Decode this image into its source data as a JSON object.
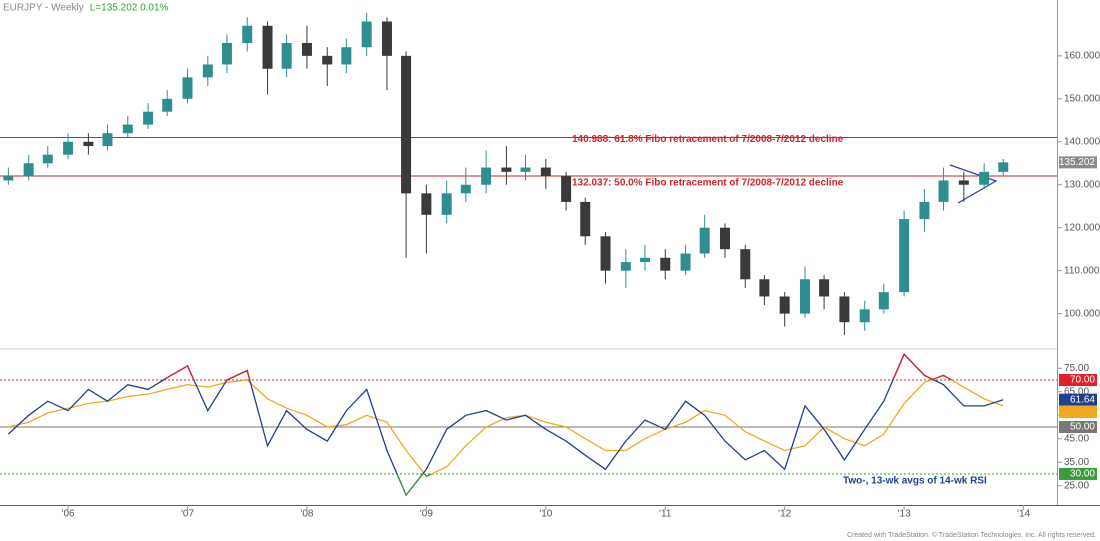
{
  "chart_data": [
    {
      "type": "candlestick",
      "title": "EURJPY - Weekly",
      "subtitle": "L=135.202 0.01%",
      "x": [
        2005.5,
        2005.67,
        2005.83,
        2006,
        2006.17,
        2006.33,
        2006.5,
        2006.67,
        2006.83,
        2007,
        2007.17,
        2007.33,
        2007.5,
        2007.67,
        2007.83,
        2008,
        2008.17,
        2008.33,
        2008.5,
        2008.67,
        2008.83,
        2009,
        2009.17,
        2009.33,
        2009.5,
        2009.67,
        2009.83,
        2010,
        2010.17,
        2010.33,
        2010.5,
        2010.67,
        2010.83,
        2011,
        2011.17,
        2011.33,
        2011.5,
        2011.67,
        2011.83,
        2012,
        2012.17,
        2012.33,
        2012.5,
        2012.67,
        2012.83,
        2013,
        2013.17,
        2013.33,
        2013.5,
        2013.67,
        2013.83
      ],
      "open": [
        131,
        132,
        135,
        137,
        140,
        139,
        142,
        144,
        147,
        150,
        155,
        158,
        163,
        167,
        157,
        163,
        160,
        158,
        162,
        168,
        160,
        128,
        123,
        128,
        130,
        134,
        133,
        134,
        132,
        126,
        118,
        110,
        112,
        113,
        110,
        114,
        120,
        115,
        108,
        104,
        100,
        108,
        104,
        98,
        101,
        105,
        122,
        126,
        131,
        130,
        133
      ],
      "high": [
        134,
        137,
        139,
        142,
        142,
        144,
        146,
        149,
        152,
        157,
        160,
        165,
        169,
        168,
        165,
        167,
        162,
        164,
        170,
        169,
        161,
        130,
        131,
        134,
        138,
        139,
        137,
        136,
        133,
        127,
        119,
        115,
        116,
        115,
        116,
        123,
        121,
        116,
        109,
        105,
        111,
        109,
        105,
        103,
        107,
        124,
        129,
        134,
        133,
        135,
        136
      ],
      "low": [
        130,
        131,
        134,
        136,
        137,
        138,
        141,
        143,
        146,
        149,
        153,
        156,
        161,
        151,
        155,
        157,
        153,
        156,
        160,
        152,
        113,
        114,
        121,
        126,
        128,
        130,
        131,
        129,
        124,
        116,
        107,
        106,
        110,
        108,
        109,
        113,
        113,
        106,
        102,
        97,
        99,
        101,
        95,
        96,
        100,
        104,
        119,
        124,
        126,
        129,
        132
      ],
      "close": [
        132,
        135,
        137,
        140,
        139,
        142,
        144,
        147,
        150,
        155,
        158,
        163,
        167,
        157,
        163,
        160,
        158,
        162,
        168,
        160,
        128,
        123,
        128,
        130,
        134,
        133,
        134,
        132,
        126,
        118,
        110,
        112,
        113,
        110,
        114,
        120,
        115,
        108,
        104,
        100,
        108,
        104,
        98,
        101,
        105,
        122,
        126,
        131,
        130,
        133,
        135.202
      ],
      "up_color": "#2f8f8f",
      "down_color": "#3a3a3a",
      "xlim": [
        2005.43,
        2014.28
      ],
      "ylim": [
        92,
        173
      ],
      "yticks": [
        {
          "value": 100,
          "label": "100.000"
        },
        {
          "value": 110,
          "label": "110.000"
        },
        {
          "value": 120,
          "label": "120.000"
        },
        {
          "value": 130,
          "label": "130.000"
        },
        {
          "value": 140,
          "label": "140.000"
        },
        {
          "value": 150,
          "label": "150.000"
        },
        {
          "value": 160,
          "label": "160.000"
        }
      ],
      "hlines": [
        {
          "value": 140.988,
          "label": "140.988: 61.8% Fibo retracement of 7/2008-7/2012 decline",
          "color": "#d2232a"
        },
        {
          "value": 132.037,
          "label": "132.037: 50.0% Fibo retracement of 7/2008-7/2012 decline",
          "color": "#d2232a"
        }
      ]
    },
    {
      "type": "line",
      "annotation": "Two-, 13-wk avgs of 14-wk RSI",
      "x": [
        2005.5,
        2005.67,
        2005.83,
        2006,
        2006.17,
        2006.33,
        2006.5,
        2006.67,
        2006.83,
        2007,
        2007.17,
        2007.33,
        2007.5,
        2007.67,
        2007.83,
        2008,
        2008.17,
        2008.33,
        2008.5,
        2008.67,
        2008.83,
        2009,
        2009.17,
        2009.33,
        2009.5,
        2009.67,
        2009.83,
        2010,
        2010.17,
        2010.33,
        2010.5,
        2010.67,
        2010.83,
        2011,
        2011.17,
        2011.33,
        2011.5,
        2011.67,
        2011.83,
        2012,
        2012.17,
        2012.33,
        2012.5,
        2012.67,
        2012.83,
        2013,
        2013.17,
        2013.33,
        2013.5,
        2013.67,
        2013.83
      ],
      "series": [
        {
          "color": "#1f3f8f",
          "values": [
            47,
            55,
            61,
            57,
            66,
            61,
            68,
            66,
            71,
            76,
            57,
            70,
            74,
            42,
            57,
            49,
            44,
            57,
            66,
            40,
            21,
            32,
            49,
            55,
            57,
            53,
            55,
            49,
            44,
            38,
            32,
            44,
            53,
            49,
            61,
            55,
            44,
            36,
            40,
            32,
            59,
            49,
            36,
            49,
            61,
            81,
            72,
            68,
            59,
            59,
            61.64
          ]
        },
        {
          "color": "#f0a91e",
          "values": [
            50,
            52,
            56,
            58,
            60,
            61,
            63,
            64,
            66,
            68,
            67,
            69,
            70,
            62,
            58,
            55,
            50,
            51,
            55,
            52,
            40,
            29,
            33,
            42,
            50,
            54,
            55,
            52,
            50,
            45,
            40,
            40,
            45,
            49,
            52,
            57,
            55,
            48,
            44,
            40,
            42,
            50,
            45,
            42,
            47,
            60,
            69,
            72,
            67,
            62,
            59
          ]
        }
      ],
      "overbought_color": "#e0202a",
      "oversold_color": "#3a9c3a",
      "xlim": [
        2005.43,
        2014.28
      ],
      "ylim": [
        17,
        83
      ],
      "xticks": [
        {
          "value": 2006,
          "label": "'06"
        },
        {
          "value": 2007,
          "label": "'07"
        },
        {
          "value": 2008,
          "label": "'08"
        },
        {
          "value": 2009,
          "label": "'09"
        },
        {
          "value": 2010,
          "label": "'10"
        },
        {
          "value": 2011,
          "label": "'11"
        },
        {
          "value": 2012,
          "label": "'12"
        },
        {
          "value": 2013,
          "label": "'13"
        },
        {
          "value": 2014,
          "label": "'14"
        }
      ],
      "yticks": [
        {
          "value": 25,
          "label": "25.00"
        },
        {
          "value": 35,
          "label": "35.00"
        },
        {
          "value": 45,
          "label": "45.00"
        },
        {
          "value": 55,
          "label": "55.00"
        },
        {
          "value": 65,
          "label": "65.00"
        },
        {
          "value": 75,
          "label": "75.00"
        }
      ],
      "hlines": [
        {
          "value": 70,
          "label": "70.00",
          "color": "#e0202a",
          "dash": true
        },
        {
          "value": 50,
          "label": "50.00",
          "color": "#777777",
          "dash": false
        },
        {
          "value": 30,
          "label": "30.00",
          "color": "#3a9c3a",
          "dash": true
        }
      ]
    }
  ],
  "copyright": "Created with TradeStation. © TradeStation Technologies, Inc. All rights reserved."
}
